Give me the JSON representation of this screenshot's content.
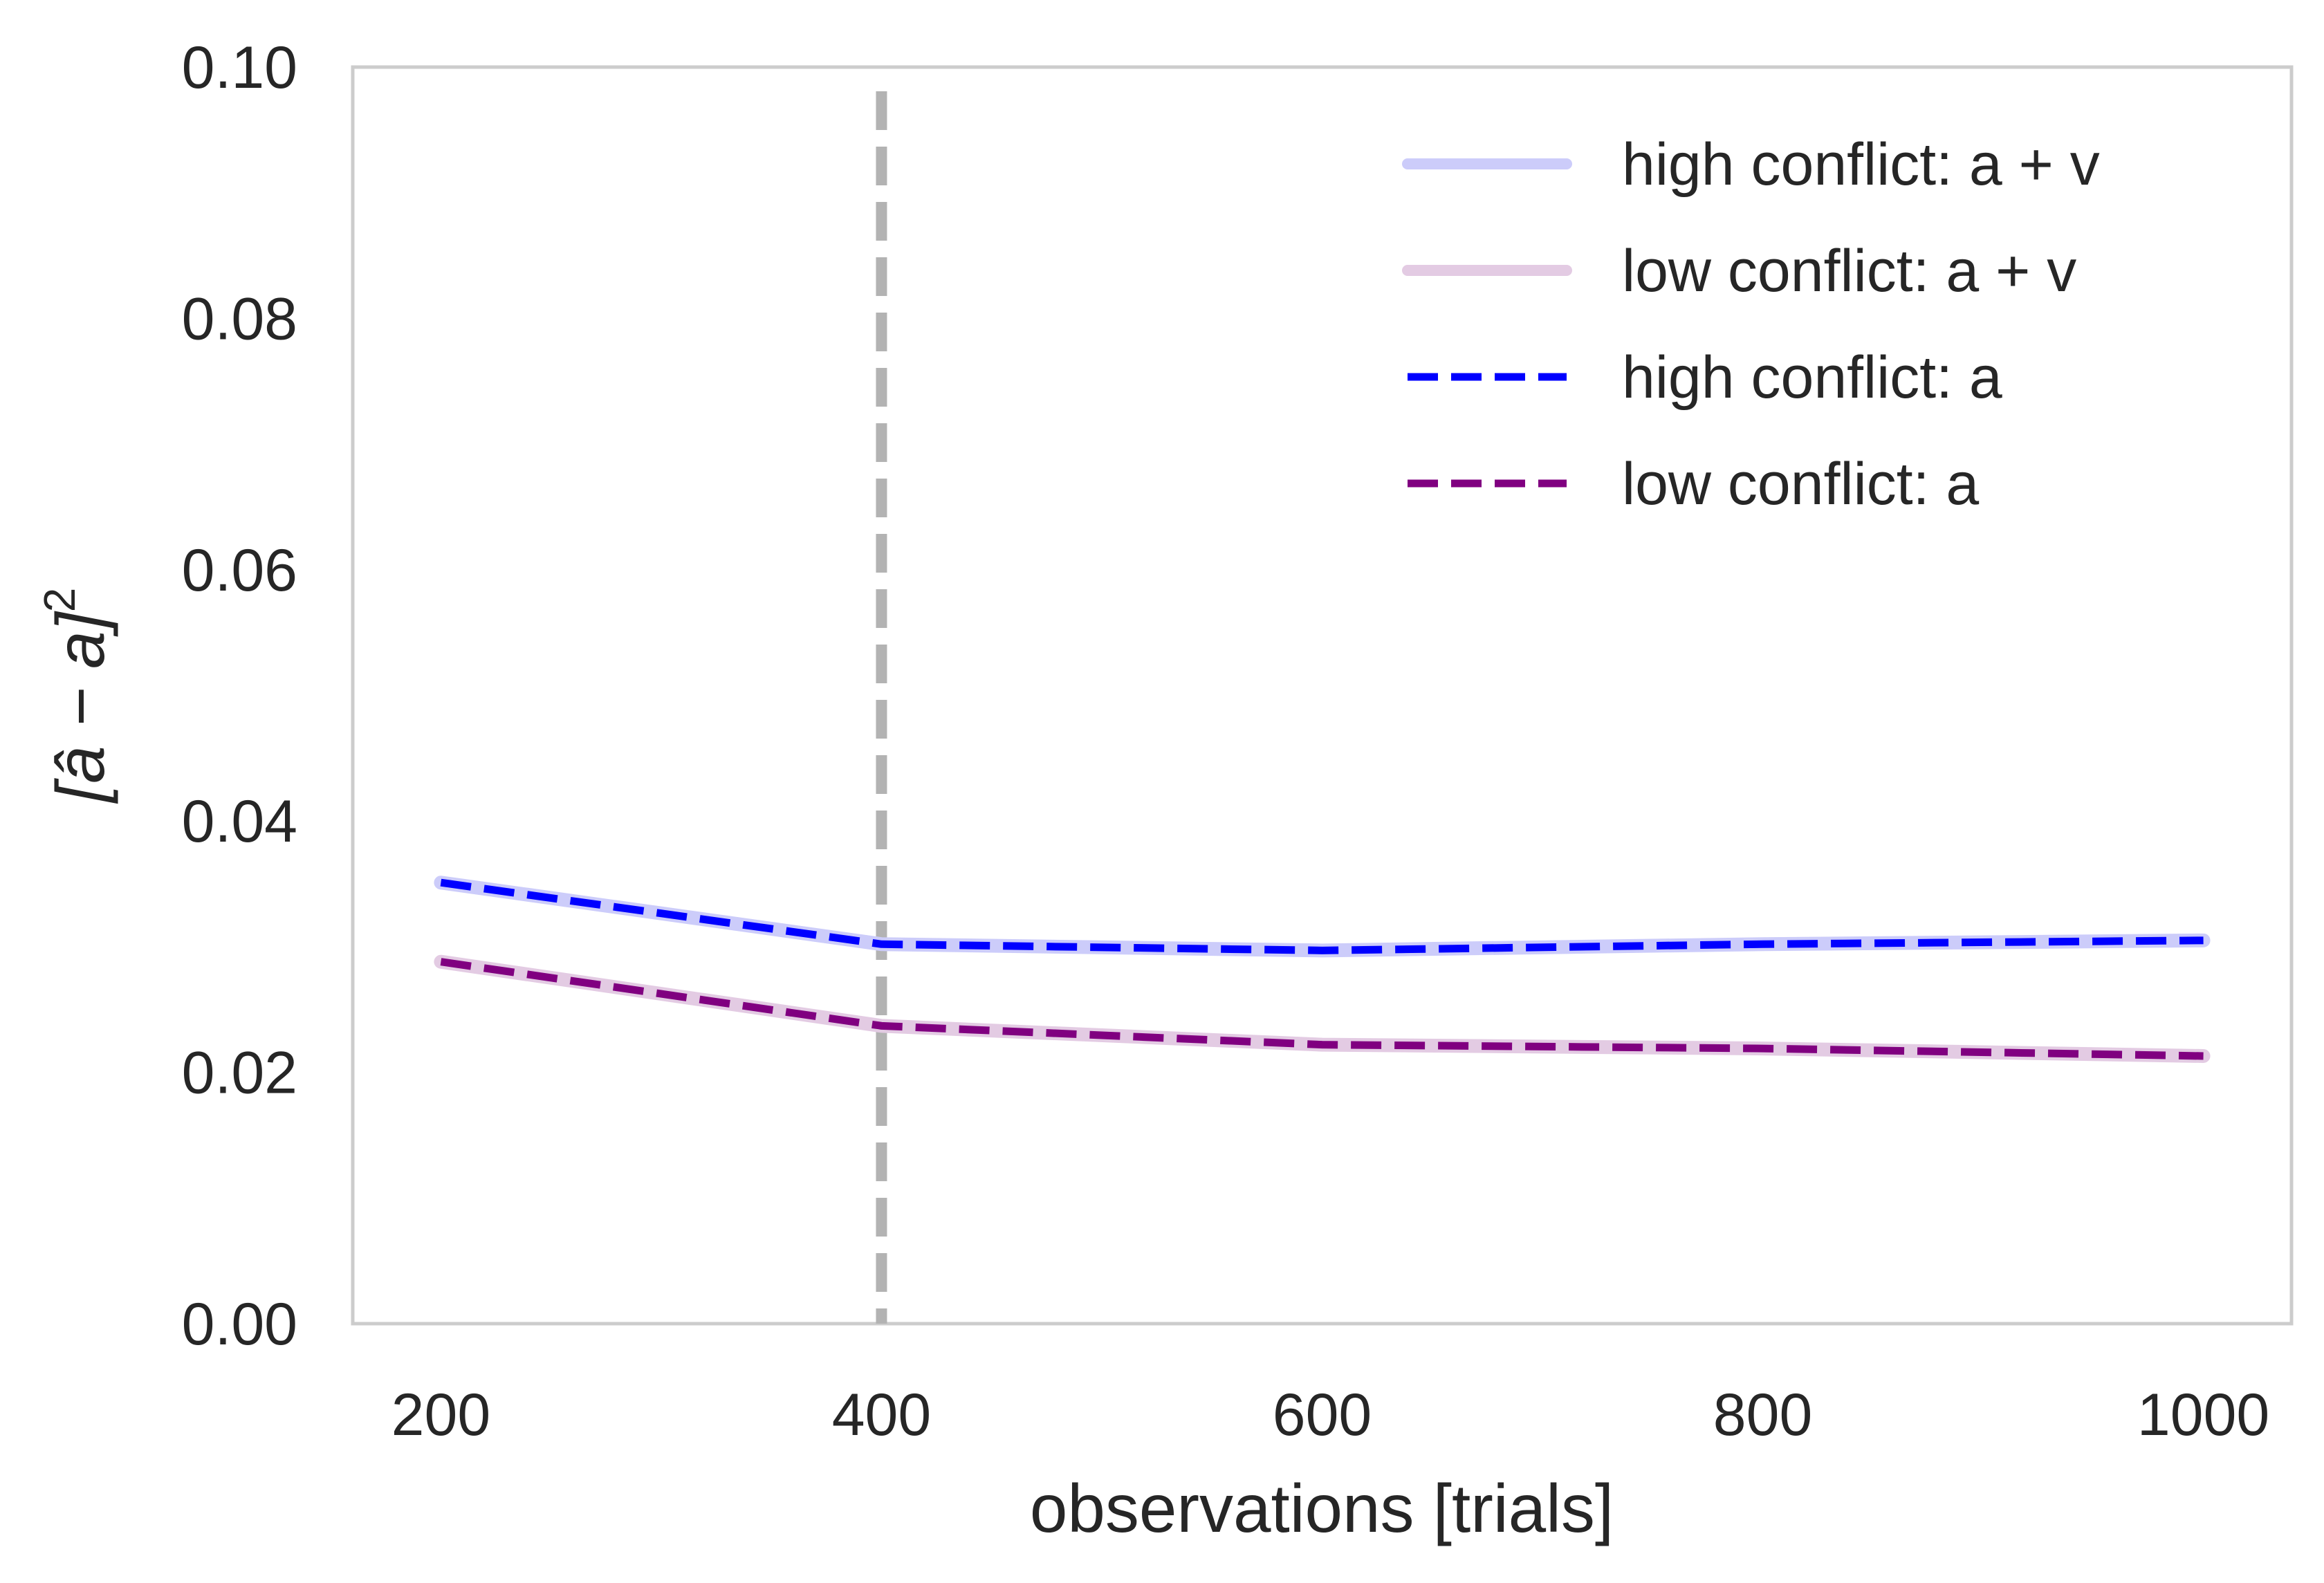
{
  "chart_data": {
    "type": "line",
    "title": "",
    "xlabel": "observations [trials]",
    "ylabel": "[â − a]",
    "ylabel_superscript": "2",
    "xlim": [
      160,
      1040
    ],
    "ylim": [
      0.0,
      0.1
    ],
    "xticks": [
      200,
      400,
      600,
      800,
      1000
    ],
    "xtick_labels": [
      "200",
      "400",
      "600",
      "800",
      "1000"
    ],
    "yticks": [
      0.0,
      0.02,
      0.04,
      0.06,
      0.08,
      0.1
    ],
    "ytick_labels": [
      "0.00",
      "0.02",
      "0.04",
      "0.06",
      "0.08",
      "0.10"
    ],
    "grid": false,
    "legend_position": "top-right",
    "reference_line": {
      "x": 400,
      "style": "dashed",
      "color": "#b3b3b3"
    },
    "x": [
      200,
      400,
      600,
      800,
      1000
    ],
    "series": [
      {
        "name": "high conflict: a + v",
        "values": [
          0.0351,
          0.0302,
          0.0297,
          0.0302,
          0.0305
        ],
        "color": "#ccccfa",
        "style": "solid"
      },
      {
        "name": "low conflict: a + v",
        "values": [
          0.0288,
          0.0237,
          0.0222,
          0.0219,
          0.0213
        ],
        "color": "#e3cbe3",
        "style": "solid"
      },
      {
        "name": "high conflict: a",
        "values": [
          0.0351,
          0.0302,
          0.0297,
          0.0302,
          0.0305
        ],
        "color": "#0000ff",
        "style": "dashed"
      },
      {
        "name": "low conflict: a",
        "values": [
          0.0288,
          0.0237,
          0.0222,
          0.0219,
          0.0213
        ],
        "color": "#800080",
        "style": "dashed"
      }
    ]
  }
}
